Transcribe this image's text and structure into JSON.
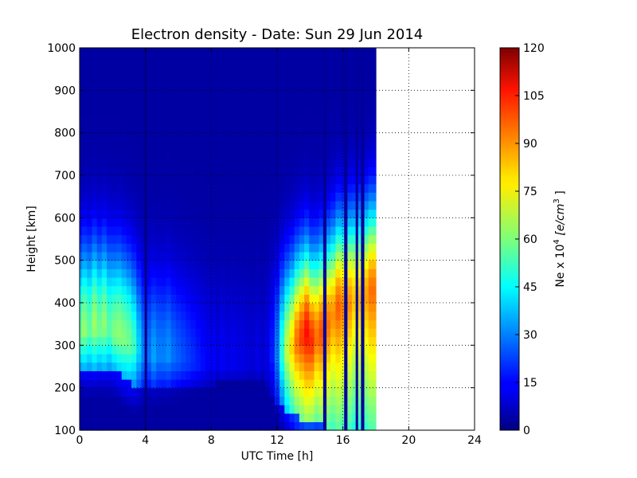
{
  "chart_data": {
    "type": "heatmap",
    "title": "Electron density - Date: Sun 29 Jun 2014",
    "xlabel": "UTC Time [h]",
    "ylabel": "Height [km]",
    "colorbar_label_prefix": "Ne x 10",
    "colorbar_label_exp": "4",
    "colorbar_label_unit": "[e/cm",
    "colorbar_label_unit_exp": "3",
    "colorbar_label_close": "]",
    "xlim": [
      0,
      24
    ],
    "ylim": [
      100,
      1000
    ],
    "clim": [
      0,
      120
    ],
    "x_ticks": [
      0,
      4,
      8,
      12,
      16,
      20,
      24
    ],
    "y_ticks": [
      100,
      200,
      300,
      400,
      500,
      600,
      700,
      800,
      900,
      1000
    ],
    "c_ticks": [
      0,
      15,
      30,
      45,
      60,
      75,
      90,
      105,
      120
    ],
    "colormap": "jet",
    "grid": true,
    "data_coverage_hours": [
      0,
      18
    ],
    "profiles": [
      {
        "t": 0.0,
        "peak_h": 320,
        "peak_v": 58,
        "base_h": 250
      },
      {
        "t": 0.3,
        "peak_h": 330,
        "peak_v": 62,
        "base_h": 250
      },
      {
        "t": 0.6,
        "peak_h": 330,
        "peak_v": 56,
        "base_h": 245
      },
      {
        "t": 0.9,
        "peak_h": 340,
        "peak_v": 64,
        "base_h": 250
      },
      {
        "t": 1.2,
        "peak_h": 330,
        "peak_v": 58,
        "base_h": 250
      },
      {
        "t": 1.5,
        "peak_h": 340,
        "peak_v": 62,
        "base_h": 250
      },
      {
        "t": 1.8,
        "peak_h": 330,
        "peak_v": 55,
        "base_h": 245
      },
      {
        "t": 2.1,
        "peak_h": 320,
        "peak_v": 60,
        "base_h": 245
      },
      {
        "t": 2.4,
        "peak_h": 320,
        "peak_v": 62,
        "base_h": 235
      },
      {
        "t": 2.7,
        "peak_h": 310,
        "peak_v": 60,
        "base_h": 225
      },
      {
        "t": 3.0,
        "peak_h": 300,
        "peak_v": 58,
        "base_h": 215
      },
      {
        "t": 3.3,
        "peak_h": 290,
        "peak_v": 52,
        "base_h": 205
      },
      {
        "t": 3.6,
        "peak_h": 280,
        "peak_v": 40,
        "base_h": 200
      },
      {
        "t": 3.9,
        "peak_h": 270,
        "peak_v": 30,
        "base_h": 200
      },
      {
        "t": 4.0,
        "peak_h": 270,
        "peak_v": 2,
        "base_h": 200
      },
      {
        "t": 4.2,
        "peak_h": 270,
        "peak_v": 28,
        "base_h": 205
      },
      {
        "t": 4.5,
        "peak_h": 265,
        "peak_v": 34,
        "base_h": 205
      },
      {
        "t": 4.8,
        "peak_h": 270,
        "peak_v": 30,
        "base_h": 205
      },
      {
        "t": 5.1,
        "peak_h": 265,
        "peak_v": 30,
        "base_h": 210
      },
      {
        "t": 5.4,
        "peak_h": 270,
        "peak_v": 32,
        "base_h": 210
      },
      {
        "t": 5.7,
        "peak_h": 265,
        "peak_v": 28,
        "base_h": 210
      },
      {
        "t": 6.0,
        "peak_h": 260,
        "peak_v": 26,
        "base_h": 210
      },
      {
        "t": 6.3,
        "peak_h": 260,
        "peak_v": 24,
        "base_h": 210
      },
      {
        "t": 6.6,
        "peak_h": 255,
        "peak_v": 22,
        "base_h": 210
      },
      {
        "t": 6.9,
        "peak_h": 255,
        "peak_v": 20,
        "base_h": 210
      },
      {
        "t": 7.2,
        "peak_h": 250,
        "peak_v": 18,
        "base_h": 210
      },
      {
        "t": 7.5,
        "peak_h": 250,
        "peak_v": 16,
        "base_h": 210
      },
      {
        "t": 7.8,
        "peak_h": 250,
        "peak_v": 14,
        "base_h": 210
      },
      {
        "t": 8.1,
        "peak_h": 250,
        "peak_v": 14,
        "base_h": 210
      },
      {
        "t": 8.4,
        "peak_h": 250,
        "peak_v": 12,
        "base_h": 215
      },
      {
        "t": 8.7,
        "peak_h": 250,
        "peak_v": 14,
        "base_h": 215
      },
      {
        "t": 9.0,
        "peak_h": 250,
        "peak_v": 12,
        "base_h": 215
      },
      {
        "t": 9.3,
        "peak_h": 250,
        "peak_v": 13,
        "base_h": 215
      },
      {
        "t": 9.6,
        "peak_h": 250,
        "peak_v": 12,
        "base_h": 215
      },
      {
        "t": 9.9,
        "peak_h": 250,
        "peak_v": 12,
        "base_h": 215
      },
      {
        "t": 10.2,
        "peak_h": 250,
        "peak_v": 11,
        "base_h": 215
      },
      {
        "t": 10.5,
        "peak_h": 250,
        "peak_v": 10,
        "base_h": 215
      },
      {
        "t": 10.8,
        "peak_h": 250,
        "peak_v": 12,
        "base_h": 215
      },
      {
        "t": 11.1,
        "peak_h": 250,
        "peak_v": 10,
        "base_h": 215
      },
      {
        "t": 11.4,
        "peak_h": 260,
        "peak_v": 12,
        "base_h": 200
      },
      {
        "t": 11.7,
        "peak_h": 270,
        "peak_v": 18,
        "base_h": 190
      },
      {
        "t": 12.0,
        "peak_h": 270,
        "peak_v": 30,
        "base_h": 170
      },
      {
        "t": 12.3,
        "peak_h": 275,
        "peak_v": 50,
        "base_h": 160
      },
      {
        "t": 12.6,
        "peak_h": 280,
        "peak_v": 68,
        "base_h": 150
      },
      {
        "t": 12.9,
        "peak_h": 285,
        "peak_v": 80,
        "base_h": 140
      },
      {
        "t": 13.2,
        "peak_h": 300,
        "peak_v": 92,
        "base_h": 135
      },
      {
        "t": 13.5,
        "peak_h": 310,
        "peak_v": 98,
        "base_h": 130
      },
      {
        "t": 13.8,
        "peak_h": 320,
        "peak_v": 104,
        "base_h": 125
      },
      {
        "t": 14.1,
        "peak_h": 300,
        "peak_v": 100,
        "base_h": 120
      },
      {
        "t": 14.4,
        "peak_h": 310,
        "peak_v": 92,
        "base_h": 120
      },
      {
        "t": 14.7,
        "peak_h": 320,
        "peak_v": 96,
        "base_h": 115
      },
      {
        "t": 14.9,
        "peak_h": 320,
        "peak_v": 3,
        "base_h": 115
      },
      {
        "t": 15.1,
        "peak_h": 340,
        "peak_v": 92,
        "base_h": 110
      },
      {
        "t": 15.4,
        "peak_h": 360,
        "peak_v": 88,
        "base_h": 110
      },
      {
        "t": 15.7,
        "peak_h": 380,
        "peak_v": 94,
        "base_h": 110
      },
      {
        "t": 16.0,
        "peak_h": 380,
        "peak_v": 90,
        "base_h": 110
      },
      {
        "t": 16.15,
        "peak_h": 380,
        "peak_v": 3,
        "base_h": 110
      },
      {
        "t": 16.4,
        "peak_h": 390,
        "peak_v": 88,
        "base_h": 110
      },
      {
        "t": 16.7,
        "peak_h": 400,
        "peak_v": 82,
        "base_h": 110
      },
      {
        "t": 16.85,
        "peak_h": 400,
        "peak_v": 3,
        "base_h": 110
      },
      {
        "t": 17.0,
        "peak_h": 400,
        "peak_v": 84,
        "base_h": 110
      },
      {
        "t": 17.2,
        "peak_h": 400,
        "peak_v": 3,
        "base_h": 110
      },
      {
        "t": 17.4,
        "peak_h": 410,
        "peak_v": 86,
        "base_h": 110
      },
      {
        "t": 17.7,
        "peak_h": 420,
        "peak_v": 92,
        "base_h": 110
      }
    ]
  }
}
